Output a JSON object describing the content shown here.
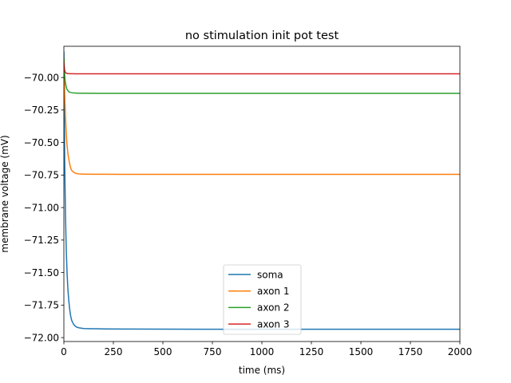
{
  "chart_data": {
    "type": "line",
    "title": "no stimulation init pot test",
    "xlabel": "time (ms)",
    "ylabel": "membrane voltage (mV)",
    "xlim": [
      0,
      2000
    ],
    "ylim": [
      -72.03,
      -69.76
    ],
    "x_ticks": [
      0,
      250,
      500,
      750,
      1000,
      1250,
      1500,
      1750,
      2000
    ],
    "x_tick_labels": [
      "0",
      "250",
      "500",
      "750",
      "1000",
      "1250",
      "1500",
      "1750",
      "2000"
    ],
    "y_ticks": [
      -70.0,
      -70.25,
      -70.5,
      -70.75,
      -71.0,
      -71.25,
      -71.5,
      -71.75,
      -72.0
    ],
    "y_tick_labels": [
      "−70.00",
      "−70.25",
      "−70.50",
      "−70.75",
      "−71.00",
      "−71.25",
      "−71.50",
      "−71.75",
      "−72.00"
    ],
    "grid": false,
    "legend_position": "lower-center",
    "series": [
      {
        "name": "soma",
        "color": "#1f77b4",
        "x": [
          0,
          4,
          8,
          12,
          16,
          20,
          25,
          30,
          35,
          40,
          50,
          60,
          70,
          80,
          100,
          150,
          200,
          300,
          500,
          1000,
          1500,
          2000
        ],
        "y": [
          -69.8,
          -70.62,
          -71.05,
          -71.32,
          -71.5,
          -71.62,
          -71.72,
          -71.79,
          -71.84,
          -71.87,
          -71.9,
          -71.915,
          -71.922,
          -71.926,
          -71.93,
          -71.932,
          -71.933,
          -71.934,
          -71.935,
          -71.936,
          -71.936,
          -71.936
        ]
      },
      {
        "name": "axon 1",
        "color": "#ff7f0e",
        "x": [
          0,
          4,
          8,
          12,
          16,
          20,
          25,
          30,
          35,
          40,
          50,
          60,
          70,
          80,
          100,
          150,
          200,
          300,
          500,
          1000,
          1500,
          2000
        ],
        "y": [
          -69.85,
          -70.12,
          -70.3,
          -70.43,
          -70.52,
          -70.58,
          -70.63,
          -70.67,
          -70.7,
          -70.715,
          -70.73,
          -70.737,
          -70.74,
          -70.742,
          -70.743,
          -70.744,
          -70.744,
          -70.745,
          -70.745,
          -70.745,
          -70.745,
          -70.745
        ]
      },
      {
        "name": "axon 2",
        "color": "#2ca02c",
        "x": [
          0,
          3,
          6,
          10,
          15,
          20,
          25,
          30,
          40,
          50,
          60,
          80,
          100,
          200,
          500,
          1000,
          1500,
          2000
        ],
        "y": [
          -69.85,
          -69.96,
          -70.02,
          -70.06,
          -70.09,
          -70.1,
          -70.11,
          -70.113,
          -70.117,
          -70.119,
          -70.12,
          -70.121,
          -70.121,
          -70.122,
          -70.122,
          -70.122,
          -70.122,
          -70.122
        ]
      },
      {
        "name": "axon 3",
        "color": "#d62728",
        "x": [
          0,
          2,
          4,
          6,
          8,
          10,
          15,
          20,
          30,
          40,
          60,
          100,
          200,
          500,
          1000,
          1500,
          2000
        ],
        "y": [
          -69.88,
          -69.92,
          -69.945,
          -69.955,
          -69.96,
          -69.965,
          -69.968,
          -69.97,
          -69.971,
          -69.971,
          -69.972,
          -69.972,
          -69.972,
          -69.972,
          -69.972,
          -69.972,
          -69.972
        ]
      }
    ]
  }
}
